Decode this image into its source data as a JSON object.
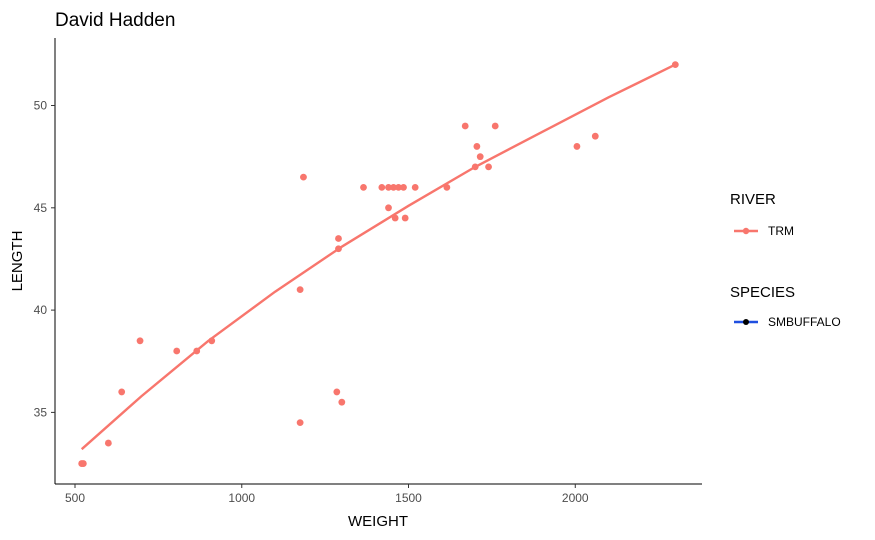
{
  "chart_data": {
    "type": "scatter",
    "title": "David Hadden",
    "xlabel": "WEIGHT",
    "ylabel": "LENGTH",
    "xlim": [
      440,
      2380
    ],
    "ylim": [
      31.5,
      53.3
    ],
    "xticks": [
      500,
      1000,
      1500,
      2000
    ],
    "yticks": [
      35,
      40,
      45,
      50
    ],
    "grid": false,
    "point_color": "#F8766D",
    "series": [
      {
        "name": "TRM",
        "points": [
          [
            520,
            32.5
          ],
          [
            525,
            32.5
          ],
          [
            600,
            33.5
          ],
          [
            640,
            36
          ],
          [
            695,
            38.5
          ],
          [
            805,
            38
          ],
          [
            865,
            38
          ],
          [
            910,
            38.5
          ],
          [
            1175,
            41
          ],
          [
            1175,
            34.5
          ],
          [
            1185,
            46.5
          ],
          [
            1285,
            36
          ],
          [
            1290,
            43.5
          ],
          [
            1290,
            43
          ],
          [
            1300,
            35.5
          ],
          [
            1365,
            46
          ],
          [
            1420,
            46
          ],
          [
            1440,
            46
          ],
          [
            1440,
            45
          ],
          [
            1455,
            46
          ],
          [
            1460,
            44.5
          ],
          [
            1470,
            46
          ],
          [
            1485,
            46
          ],
          [
            1490,
            44.5
          ],
          [
            1520,
            46
          ],
          [
            1615,
            46
          ],
          [
            1670,
            49
          ],
          [
            1700,
            47
          ],
          [
            1705,
            48
          ],
          [
            1715,
            47.5
          ],
          [
            1740,
            47
          ],
          [
            1760,
            49
          ],
          [
            2005,
            48
          ],
          [
            2060,
            48.5
          ],
          [
            2300,
            52
          ]
        ]
      }
    ],
    "trend_line": {
      "x": [
        520,
        700,
        900,
        1100,
        1300,
        1500,
        1700,
        1900,
        2100,
        2300
      ],
      "y": [
        33.2,
        35.8,
        38.5,
        40.9,
        43.1,
        45.1,
        47.0,
        48.7,
        50.4,
        52.0
      ]
    },
    "legend": {
      "placement": "right",
      "groups": [
        {
          "title": "RIVER",
          "items": [
            {
              "label": "TRM",
              "color": "#F8766D"
            }
          ]
        },
        {
          "title": "SPECIES",
          "items": [
            {
              "label": "SMBUFFALO",
              "color": "#1F4FE0"
            }
          ]
        }
      ]
    }
  }
}
